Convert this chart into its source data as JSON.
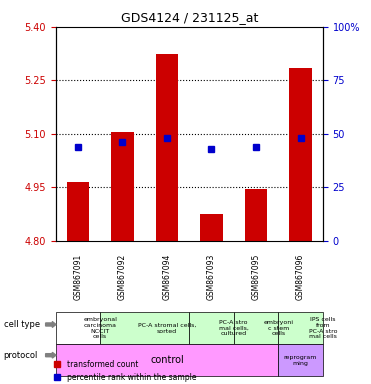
{
  "title": "GDS4124 / 231125_at",
  "samples": [
    "GSM867091",
    "GSM867092",
    "GSM867094",
    "GSM867093",
    "GSM867095",
    "GSM867096"
  ],
  "transformed_count": [
    4.965,
    5.105,
    5.325,
    4.875,
    4.945,
    5.285
  ],
  "percentile_rank": [
    44,
    46,
    48,
    43,
    44,
    48
  ],
  "ylim": [
    4.8,
    5.4
  ],
  "y_ticks": [
    4.8,
    4.95,
    5.1,
    5.25,
    5.4
  ],
  "y_right_ticks": [
    0,
    25,
    50,
    75,
    100
  ],
  "dotted_lines": [
    4.95,
    5.1,
    5.25
  ],
  "bar_color": "#cc0000",
  "dot_color": "#0000cc",
  "bar_bottom": 4.8,
  "cell_types": [
    {
      "label": "embryonal\ncarcinoma\nNCCIT\ncells",
      "color": "#ccffcc",
      "span": [
        0,
        1
      ]
    },
    {
      "label": "PC-A stromal cells,\nsorted",
      "color": "#ccffcc",
      "span": [
        1,
        3
      ]
    },
    {
      "label": "PC-A stro\nmal cells,\ncultured",
      "color": "#ccffcc",
      "span": [
        3,
        4
      ]
    },
    {
      "label": "embryoni\nc stem\ncells",
      "color": "#ccffcc",
      "span": [
        4,
        5
      ]
    },
    {
      "label": "IPS cells\nfrom\nPC-A stro\nmal cells",
      "color": "#ccffcc",
      "span": [
        5,
        6
      ]
    }
  ],
  "protocol_control": {
    "label": "control",
    "color": "#ff99ff",
    "span": [
      0,
      5
    ]
  },
  "protocol_reprog": {
    "label": "reprogram\nming",
    "color": "#cc99ff",
    "span": [
      5,
      6
    ]
  },
  "legend_items": [
    {
      "color": "#cc0000",
      "label": "transformed count"
    },
    {
      "color": "#0000cc",
      "label": "percentile rank within the sample"
    }
  ],
  "left_axis_color": "#cc0000",
  "right_axis_color": "#0000cc",
  "background_color": "#ffffff",
  "plot_bg_color": "#e8e8e8",
  "header_bg_color": "#c0c0c0"
}
